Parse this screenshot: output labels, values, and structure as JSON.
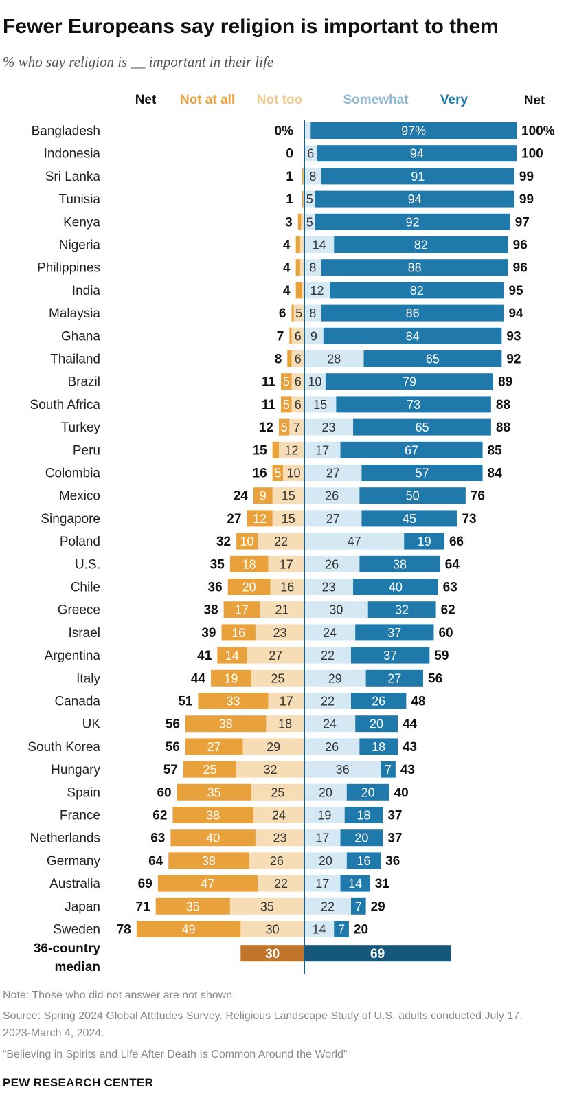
{
  "title": "Fewer Europeans say religion is important to them",
  "subtitle": "% who say religion is __ important in their life",
  "chart_data": {
    "type": "bar",
    "orientation": "horizontal-diverging",
    "column_headers": {
      "net_left": "Net",
      "not_at_all": "Not at all",
      "not_too": "Not too",
      "somewhat": "Somewhat",
      "very": "Very",
      "net_right": "Net"
    },
    "colors": {
      "not_at_all": "#E9A23B",
      "not_too": "#F7DDB6",
      "somewhat": "#D5E9F5",
      "very": "#2079AB",
      "median_left": "#C0752A",
      "median_right": "#16587C",
      "axis": "#1F5C82"
    },
    "rows": [
      {
        "country": "Bangladesh",
        "not_at_all": 0,
        "not_too": 0,
        "somewhat": 3,
        "very": 97,
        "net_neg": "0%",
        "net_pos": "100%",
        "l_na": "",
        "l_nt": "",
        "l_sw": "",
        "l_v": "97%"
      },
      {
        "country": "Indonesia",
        "not_at_all": 0,
        "not_too": 0,
        "somewhat": 6,
        "very": 94,
        "net_neg": "0",
        "net_pos": "100",
        "l_na": "",
        "l_nt": "",
        "l_sw": "6",
        "l_v": "94"
      },
      {
        "country": "Sri Lanka",
        "not_at_all": 0.5,
        "not_too": 0.5,
        "somewhat": 8,
        "very": 91,
        "net_neg": "1",
        "net_pos": "99",
        "l_na": "",
        "l_nt": "",
        "l_sw": "8",
        "l_v": "91"
      },
      {
        "country": "Tunisia",
        "not_at_all": 0.5,
        "not_too": 0.5,
        "somewhat": 5,
        "very": 94,
        "net_neg": "1",
        "net_pos": "99",
        "l_na": "",
        "l_nt": "",
        "l_sw": "5",
        "l_v": "94"
      },
      {
        "country": "Kenya",
        "not_at_all": 1.5,
        "not_too": 1.5,
        "somewhat": 5,
        "very": 92,
        "net_neg": "3",
        "net_pos": "97",
        "l_na": "",
        "l_nt": "",
        "l_sw": "5",
        "l_v": "92"
      },
      {
        "country": "Nigeria",
        "not_at_all": 2,
        "not_too": 2,
        "somewhat": 14,
        "very": 82,
        "net_neg": "4",
        "net_pos": "96",
        "l_na": "",
        "l_nt": "",
        "l_sw": "14",
        "l_v": "82"
      },
      {
        "country": "Philippines",
        "not_at_all": 2,
        "not_too": 2,
        "somewhat": 8,
        "very": 88,
        "net_neg": "4",
        "net_pos": "96",
        "l_na": "",
        "l_nt": "",
        "l_sw": "8",
        "l_v": "88"
      },
      {
        "country": "India",
        "not_at_all": 3,
        "not_too": 1,
        "somewhat": 12,
        "very": 82,
        "net_neg": "4",
        "net_pos": "95",
        "l_na": "",
        "l_nt": "",
        "l_sw": "12",
        "l_v": "82"
      },
      {
        "country": "Malaysia",
        "not_at_all": 1,
        "not_too": 5,
        "somewhat": 8,
        "very": 86,
        "net_neg": "6",
        "net_pos": "94",
        "l_na": "",
        "l_nt": "5",
        "l_sw": "8",
        "l_v": "86"
      },
      {
        "country": "Ghana",
        "not_at_all": 1,
        "not_too": 6,
        "somewhat": 9,
        "very": 84,
        "net_neg": "7",
        "net_pos": "93",
        "l_na": "",
        "l_nt": "6",
        "l_sw": "9",
        "l_v": "84"
      },
      {
        "country": "Thailand",
        "not_at_all": 2,
        "not_too": 6,
        "somewhat": 28,
        "very": 65,
        "net_neg": "8",
        "net_pos": "92",
        "l_na": "",
        "l_nt": "6",
        "l_sw": "28",
        "l_v": "65"
      },
      {
        "country": "Brazil",
        "not_at_all": 5,
        "not_too": 6,
        "somewhat": 10,
        "very": 79,
        "net_neg": "11",
        "net_pos": "89",
        "l_na": "5",
        "l_nt": "6",
        "l_sw": "10",
        "l_v": "79"
      },
      {
        "country": "South Africa",
        "not_at_all": 5,
        "not_too": 6,
        "somewhat": 15,
        "very": 73,
        "net_neg": "11",
        "net_pos": "88",
        "l_na": "5",
        "l_nt": "6",
        "l_sw": "15",
        "l_v": "73"
      },
      {
        "country": "Turkey",
        "not_at_all": 5,
        "not_too": 7,
        "somewhat": 23,
        "very": 65,
        "net_neg": "12",
        "net_pos": "88",
        "l_na": "5",
        "l_nt": "7",
        "l_sw": "23",
        "l_v": "65"
      },
      {
        "country": "Peru",
        "not_at_all": 3,
        "not_too": 12,
        "somewhat": 17,
        "very": 67,
        "net_neg": "15",
        "net_pos": "85",
        "l_na": "",
        "l_nt": "12",
        "l_sw": "17",
        "l_v": "67"
      },
      {
        "country": "Colombia",
        "not_at_all": 5,
        "not_too": 10,
        "somewhat": 27,
        "very": 57,
        "net_neg": "16",
        "net_pos": "84",
        "l_na": "5",
        "l_nt": "10",
        "l_sw": "27",
        "l_v": "57"
      },
      {
        "country": "Mexico",
        "not_at_all": 9,
        "not_too": 15,
        "somewhat": 26,
        "very": 50,
        "net_neg": "24",
        "net_pos": "76",
        "l_na": "9",
        "l_nt": "15",
        "l_sw": "26",
        "l_v": "50"
      },
      {
        "country": "Singapore",
        "not_at_all": 12,
        "not_too": 15,
        "somewhat": 27,
        "very": 45,
        "net_neg": "27",
        "net_pos": "73",
        "l_na": "12",
        "l_nt": "15",
        "l_sw": "27",
        "l_v": "45"
      },
      {
        "country": "Poland",
        "not_at_all": 10,
        "not_too": 22,
        "somewhat": 47,
        "very": 19,
        "net_neg": "32",
        "net_pos": "66",
        "l_na": "10",
        "l_nt": "22",
        "l_sw": "47",
        "l_v": "19"
      },
      {
        "country": "U.S.",
        "not_at_all": 18,
        "not_too": 17,
        "somewhat": 26,
        "very": 38,
        "net_neg": "35",
        "net_pos": "64",
        "l_na": "18",
        "l_nt": "17",
        "l_sw": "26",
        "l_v": "38"
      },
      {
        "country": "Chile",
        "not_at_all": 20,
        "not_too": 16,
        "somewhat": 23,
        "very": 40,
        "net_neg": "36",
        "net_pos": "63",
        "l_na": "20",
        "l_nt": "16",
        "l_sw": "23",
        "l_v": "40"
      },
      {
        "country": "Greece",
        "not_at_all": 17,
        "not_too": 21,
        "somewhat": 30,
        "very": 32,
        "net_neg": "38",
        "net_pos": "62",
        "l_na": "17",
        "l_nt": "21",
        "l_sw": "30",
        "l_v": "32"
      },
      {
        "country": "Israel",
        "not_at_all": 16,
        "not_too": 23,
        "somewhat": 24,
        "very": 37,
        "net_neg": "39",
        "net_pos": "60",
        "l_na": "16",
        "l_nt": "23",
        "l_sw": "24",
        "l_v": "37"
      },
      {
        "country": "Argentina",
        "not_at_all": 14,
        "not_too": 27,
        "somewhat": 22,
        "very": 37,
        "net_neg": "41",
        "net_pos": "59",
        "l_na": "14",
        "l_nt": "27",
        "l_sw": "22",
        "l_v": "37"
      },
      {
        "country": "Italy",
        "not_at_all": 19,
        "not_too": 25,
        "somewhat": 29,
        "very": 27,
        "net_neg": "44",
        "net_pos": "56",
        "l_na": "19",
        "l_nt": "25",
        "l_sw": "29",
        "l_v": "27"
      },
      {
        "country": "Canada",
        "not_at_all": 33,
        "not_too": 17,
        "somewhat": 22,
        "very": 26,
        "net_neg": "51",
        "net_pos": "48",
        "l_na": "33",
        "l_nt": "17",
        "l_sw": "22",
        "l_v": "26"
      },
      {
        "country": "UK",
        "not_at_all": 38,
        "not_too": 18,
        "somewhat": 24,
        "very": 20,
        "net_neg": "56",
        "net_pos": "44",
        "l_na": "38",
        "l_nt": "18",
        "l_sw": "24",
        "l_v": "20"
      },
      {
        "country": "South Korea",
        "not_at_all": 27,
        "not_too": 29,
        "somewhat": 26,
        "very": 18,
        "net_neg": "56",
        "net_pos": "43",
        "l_na": "27",
        "l_nt": "29",
        "l_sw": "26",
        "l_v": "18"
      },
      {
        "country": "Hungary",
        "not_at_all": 25,
        "not_too": 32,
        "somewhat": 36,
        "very": 7,
        "net_neg": "57",
        "net_pos": "43",
        "l_na": "25",
        "l_nt": "32",
        "l_sw": "36",
        "l_v": "7"
      },
      {
        "country": "Spain",
        "not_at_all": 35,
        "not_too": 25,
        "somewhat": 20,
        "very": 20,
        "net_neg": "60",
        "net_pos": "40",
        "l_na": "35",
        "l_nt": "25",
        "l_sw": "20",
        "l_v": "20"
      },
      {
        "country": "France",
        "not_at_all": 38,
        "not_too": 24,
        "somewhat": 19,
        "very": 18,
        "net_neg": "62",
        "net_pos": "37",
        "l_na": "38",
        "l_nt": "24",
        "l_sw": "19",
        "l_v": "18"
      },
      {
        "country": "Netherlands",
        "not_at_all": 40,
        "not_too": 23,
        "somewhat": 17,
        "very": 20,
        "net_neg": "63",
        "net_pos": "37",
        "l_na": "40",
        "l_nt": "23",
        "l_sw": "17",
        "l_v": "20"
      },
      {
        "country": "Germany",
        "not_at_all": 38,
        "not_too": 26,
        "somewhat": 20,
        "very": 16,
        "net_neg": "64",
        "net_pos": "36",
        "l_na": "38",
        "l_nt": "26",
        "l_sw": "20",
        "l_v": "16"
      },
      {
        "country": "Australia",
        "not_at_all": 47,
        "not_too": 22,
        "somewhat": 17,
        "very": 14,
        "net_neg": "69",
        "net_pos": "31",
        "l_na": "47",
        "l_nt": "22",
        "l_sw": "17",
        "l_v": "14"
      },
      {
        "country": "Japan",
        "not_at_all": 35,
        "not_too": 35,
        "somewhat": 22,
        "very": 7,
        "net_neg": "71",
        "net_pos": "29",
        "l_na": "35",
        "l_nt": "35",
        "l_sw": "22",
        "l_v": "7"
      },
      {
        "country": "Sweden",
        "not_at_all": 49,
        "not_too": 30,
        "somewhat": 14,
        "very": 7,
        "net_neg": "78",
        "net_pos": "20",
        "l_na": "49",
        "l_nt": "30",
        "l_sw": "14",
        "l_v": "7"
      }
    ],
    "median": {
      "label_line1": "36-country",
      "label_line2": "median",
      "neg": 30,
      "pos": 69,
      "label_neg": "30",
      "label_pos": "69"
    }
  },
  "footer": {
    "note": "Note: Those who did not answer are not shown.",
    "source": "Source: Spring 2024 Global Attitudes Survey. Religious Landscape Study of U.S. adults conducted July 17, 2023-March 4, 2024.",
    "citation": "“Believing in Spirits and Life After Death Is Common Around the World”",
    "brand": "PEW RESEARCH CENTER"
  }
}
